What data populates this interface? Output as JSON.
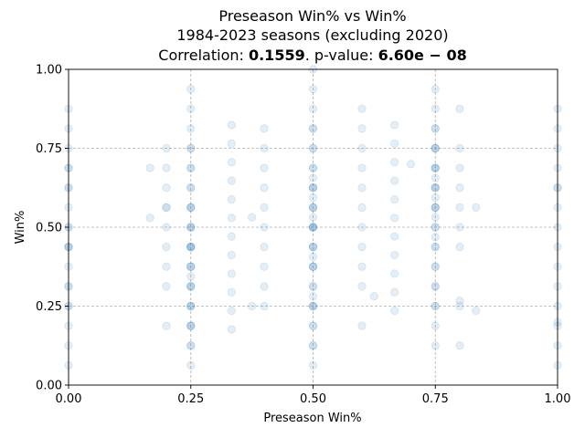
{
  "chart_data": {
    "type": "scatter",
    "title_lines": [
      "Preseason Win% vs Win%",
      "1984-2023 seasons (excluding 2020)"
    ],
    "correlation": {
      "label": "Correlation: ",
      "value": "0.1559",
      "separator": ". p-value: ",
      "p_value": "6.60e − 08"
    },
    "xlabel": "Preseason Win%",
    "ylabel": "Win%",
    "xlim": [
      0,
      1
    ],
    "ylim": [
      0,
      1
    ],
    "xticks": [
      0,
      0.25,
      0.5,
      0.75,
      1
    ],
    "yticks": [
      0,
      0.25,
      0.5,
      0.75,
      1
    ],
    "xtick_labels": [
      "0.00",
      "0.25",
      "0.50",
      "0.75",
      "1.00"
    ],
    "ytick_labels": [
      "0.00",
      "0.25",
      "0.50",
      "0.75",
      "1.00"
    ],
    "grid": true,
    "point_color": "#1f77b4",
    "point_alpha": 0.12,
    "points": [
      [
        0.0,
        0.0625
      ],
      [
        0.0,
        0.125
      ],
      [
        0.0,
        0.1875
      ],
      [
        0.0,
        0.25
      ],
      [
        0.0,
        0.25
      ],
      [
        0.0,
        0.3125
      ],
      [
        0.0,
        0.3125
      ],
      [
        0.0,
        0.375
      ],
      [
        0.0,
        0.4375
      ],
      [
        0.0,
        0.4375
      ],
      [
        0.0,
        0.4375
      ],
      [
        0.0,
        0.5
      ],
      [
        0.0,
        0.5
      ],
      [
        0.0,
        0.5625
      ],
      [
        0.0,
        0.625
      ],
      [
        0.0,
        0.625
      ],
      [
        0.0,
        0.6875
      ],
      [
        0.0,
        0.6875
      ],
      [
        0.0,
        0.75
      ],
      [
        0.0,
        0.8125
      ],
      [
        0.0,
        0.875
      ],
      [
        0.1667,
        0.5294
      ],
      [
        0.1667,
        0.6875
      ],
      [
        0.2,
        0.1875
      ],
      [
        0.2,
        0.3125
      ],
      [
        0.2,
        0.375
      ],
      [
        0.2,
        0.4375
      ],
      [
        0.2,
        0.5
      ],
      [
        0.2,
        0.5625
      ],
      [
        0.2,
        0.5625
      ],
      [
        0.2,
        0.625
      ],
      [
        0.2,
        0.6875
      ],
      [
        0.2,
        0.75
      ],
      [
        0.25,
        0.0625
      ],
      [
        0.25,
        0.125
      ],
      [
        0.25,
        0.125
      ],
      [
        0.25,
        0.1875
      ],
      [
        0.25,
        0.1875
      ],
      [
        0.25,
        0.1875
      ],
      [
        0.25,
        0.25
      ],
      [
        0.25,
        0.25
      ],
      [
        0.25,
        0.25
      ],
      [
        0.25,
        0.3125
      ],
      [
        0.25,
        0.3125
      ],
      [
        0.25,
        0.3125
      ],
      [
        0.25,
        0.3438
      ],
      [
        0.25,
        0.375
      ],
      [
        0.25,
        0.375
      ],
      [
        0.25,
        0.375
      ],
      [
        0.25,
        0.4375
      ],
      [
        0.25,
        0.4375
      ],
      [
        0.25,
        0.4375
      ],
      [
        0.25,
        0.4375
      ],
      [
        0.25,
        0.5
      ],
      [
        0.25,
        0.5
      ],
      [
        0.25,
        0.5
      ],
      [
        0.25,
        0.5625
      ],
      [
        0.25,
        0.5625
      ],
      [
        0.25,
        0.5625
      ],
      [
        0.25,
        0.625
      ],
      [
        0.25,
        0.625
      ],
      [
        0.25,
        0.6875
      ],
      [
        0.25,
        0.6875
      ],
      [
        0.25,
        0.75
      ],
      [
        0.25,
        0.75
      ],
      [
        0.25,
        0.8125
      ],
      [
        0.25,
        0.875
      ],
      [
        0.25,
        0.9375
      ],
      [
        0.3333,
        0.1765
      ],
      [
        0.3333,
        0.2353
      ],
      [
        0.3333,
        0.2941
      ],
      [
        0.3333,
        0.3529
      ],
      [
        0.3333,
        0.4118
      ],
      [
        0.3333,
        0.4706
      ],
      [
        0.3333,
        0.5294
      ],
      [
        0.3333,
        0.5882
      ],
      [
        0.3333,
        0.6471
      ],
      [
        0.3333,
        0.7059
      ],
      [
        0.3333,
        0.7647
      ],
      [
        0.3333,
        0.8235
      ],
      [
        0.375,
        0.25
      ],
      [
        0.375,
        0.5313
      ],
      [
        0.4,
        0.25
      ],
      [
        0.4,
        0.3125
      ],
      [
        0.4,
        0.375
      ],
      [
        0.4,
        0.4375
      ],
      [
        0.4,
        0.5
      ],
      [
        0.4,
        0.5625
      ],
      [
        0.4,
        0.625
      ],
      [
        0.4,
        0.6875
      ],
      [
        0.4,
        0.75
      ],
      [
        0.4,
        0.8125
      ],
      [
        0.5,
        0.0625
      ],
      [
        0.5,
        0.125
      ],
      [
        0.5,
        0.125
      ],
      [
        0.5,
        0.1875
      ],
      [
        0.5,
        0.1875
      ],
      [
        0.5,
        0.25
      ],
      [
        0.5,
        0.25
      ],
      [
        0.5,
        0.25
      ],
      [
        0.5,
        0.2813
      ],
      [
        0.5,
        0.3125
      ],
      [
        0.5,
        0.3125
      ],
      [
        0.5,
        0.375
      ],
      [
        0.5,
        0.375
      ],
      [
        0.5,
        0.375
      ],
      [
        0.5,
        0.4063
      ],
      [
        0.5,
        0.4375
      ],
      [
        0.5,
        0.4375
      ],
      [
        0.5,
        0.4375
      ],
      [
        0.5,
        0.5
      ],
      [
        0.5,
        0.5
      ],
      [
        0.5,
        0.5
      ],
      [
        0.5,
        0.5
      ],
      [
        0.5,
        0.5313
      ],
      [
        0.5,
        0.5625
      ],
      [
        0.5,
        0.5625
      ],
      [
        0.5,
        0.5625
      ],
      [
        0.5,
        0.5938
      ],
      [
        0.5,
        0.625
      ],
      [
        0.5,
        0.625
      ],
      [
        0.5,
        0.625
      ],
      [
        0.5,
        0.6563
      ],
      [
        0.5,
        0.6875
      ],
      [
        0.5,
        0.6875
      ],
      [
        0.5,
        0.75
      ],
      [
        0.5,
        0.75
      ],
      [
        0.5,
        0.8125
      ],
      [
        0.5,
        0.8125
      ],
      [
        0.5,
        0.875
      ],
      [
        0.5,
        0.9375
      ],
      [
        0.5,
        1.0
      ],
      [
        0.6,
        0.1875
      ],
      [
        0.6,
        0.3125
      ],
      [
        0.6,
        0.375
      ],
      [
        0.6,
        0.4375
      ],
      [
        0.6,
        0.5
      ],
      [
        0.6,
        0.5625
      ],
      [
        0.6,
        0.625
      ],
      [
        0.6,
        0.6875
      ],
      [
        0.6,
        0.75
      ],
      [
        0.6,
        0.8125
      ],
      [
        0.6,
        0.875
      ],
      [
        0.625,
        0.2813
      ],
      [
        0.6667,
        0.2353
      ],
      [
        0.6667,
        0.2941
      ],
      [
        0.6667,
        0.3529
      ],
      [
        0.6667,
        0.4118
      ],
      [
        0.6667,
        0.4706
      ],
      [
        0.6667,
        0.5294
      ],
      [
        0.6667,
        0.5882
      ],
      [
        0.6667,
        0.6471
      ],
      [
        0.6667,
        0.7059
      ],
      [
        0.6667,
        0.7647
      ],
      [
        0.6667,
        0.8235
      ],
      [
        0.7,
        0.7
      ],
      [
        0.75,
        0.125
      ],
      [
        0.75,
        0.1875
      ],
      [
        0.75,
        0.25
      ],
      [
        0.75,
        0.25
      ],
      [
        0.75,
        0.3125
      ],
      [
        0.75,
        0.3125
      ],
      [
        0.75,
        0.375
      ],
      [
        0.75,
        0.375
      ],
      [
        0.75,
        0.4375
      ],
      [
        0.75,
        0.4375
      ],
      [
        0.75,
        0.4688
      ],
      [
        0.75,
        0.5
      ],
      [
        0.75,
        0.5
      ],
      [
        0.75,
        0.5313
      ],
      [
        0.75,
        0.5625
      ],
      [
        0.75,
        0.5625
      ],
      [
        0.75,
        0.5625
      ],
      [
        0.75,
        0.5938
      ],
      [
        0.75,
        0.625
      ],
      [
        0.75,
        0.625
      ],
      [
        0.75,
        0.625
      ],
      [
        0.75,
        0.6563
      ],
      [
        0.75,
        0.6875
      ],
      [
        0.75,
        0.6875
      ],
      [
        0.75,
        0.6875
      ],
      [
        0.75,
        0.75
      ],
      [
        0.75,
        0.75
      ],
      [
        0.75,
        0.75
      ],
      [
        0.75,
        0.8125
      ],
      [
        0.75,
        0.8125
      ],
      [
        0.75,
        0.875
      ],
      [
        0.75,
        0.9375
      ],
      [
        0.8,
        0.125
      ],
      [
        0.8,
        0.25
      ],
      [
        0.8,
        0.2667
      ],
      [
        0.8,
        0.4375
      ],
      [
        0.8,
        0.5
      ],
      [
        0.8,
        0.5625
      ],
      [
        0.8,
        0.625
      ],
      [
        0.8,
        0.6875
      ],
      [
        0.8,
        0.75
      ],
      [
        0.8,
        0.875
      ],
      [
        0.8333,
        0.2353
      ],
      [
        0.8333,
        0.5625
      ],
      [
        1.0,
        0.0625
      ],
      [
        1.0,
        0.125
      ],
      [
        1.0,
        0.1875
      ],
      [
        1.0,
        0.2
      ],
      [
        1.0,
        0.25
      ],
      [
        1.0,
        0.3125
      ],
      [
        1.0,
        0.375
      ],
      [
        1.0,
        0.4375
      ],
      [
        1.0,
        0.5
      ],
      [
        1.0,
        0.5625
      ],
      [
        1.0,
        0.625
      ],
      [
        1.0,
        0.625
      ],
      [
        1.0,
        0.6875
      ],
      [
        1.0,
        0.75
      ],
      [
        1.0,
        0.8125
      ],
      [
        1.0,
        0.875
      ]
    ]
  }
}
